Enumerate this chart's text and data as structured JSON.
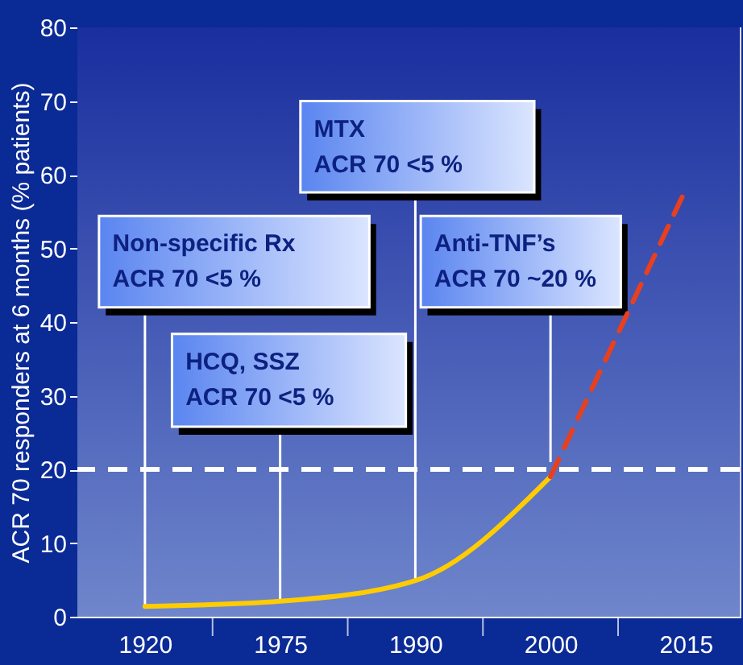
{
  "chart_data": {
    "type": "line",
    "ylabel": "ACR 70 responders at 6 months (% patients)",
    "categories": [
      "1920",
      "1975",
      "1990",
      "2000",
      "2015"
    ],
    "ylim": [
      0,
      80
    ],
    "yticks": [
      0,
      10,
      20,
      30,
      40,
      50,
      60,
      70,
      80
    ],
    "series": [
      {
        "color": "#ffcc00",
        "line_style": "solid",
        "values": [
          1.4,
          2.1,
          4.9,
          19,
          null
        ]
      },
      {
        "color": "#e8401e",
        "line_style": "dashed",
        "values": [
          null,
          null,
          null,
          19,
          58
        ]
      }
    ],
    "ref_lines": [
      {
        "axis": "y",
        "value": 20,
        "color": "#ffffff",
        "line_style": "dashed"
      }
    ],
    "annotations": [
      {
        "text": "Non-specific Rx\nACR 70 <5 %",
        "x": "1920",
        "y": 1.4
      },
      {
        "text": "HCQ, SSZ\nACR 70 <5 %",
        "x": "1975",
        "y": 2.1
      },
      {
        "text": "MTX\nACR 70 <5 %",
        "x": "1990",
        "y": 4.9
      },
      {
        "text": "Anti-TNF’s\nACR 70 ~20 %",
        "x": "2000",
        "y": 21
      }
    ]
  }
}
